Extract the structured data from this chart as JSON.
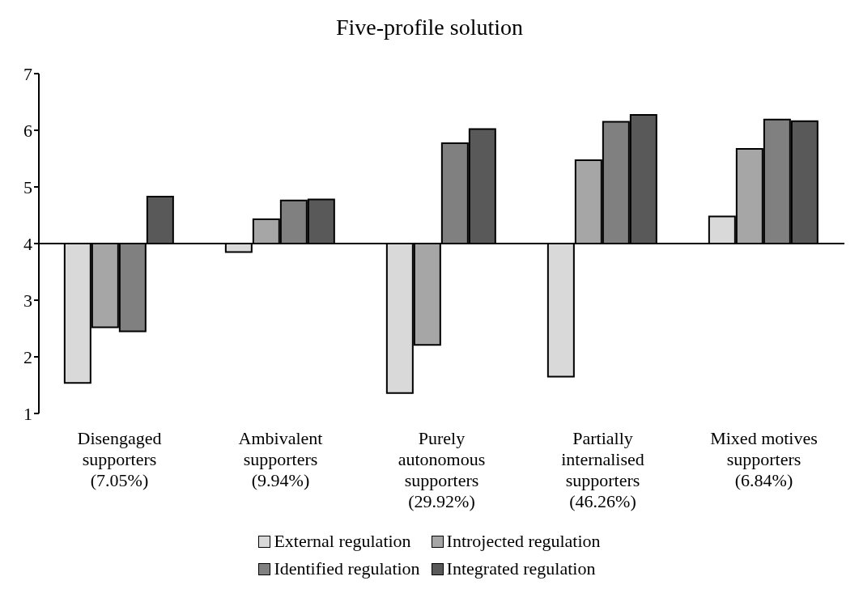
{
  "chart_data": {
    "type": "bar",
    "title": "Five-profile solution",
    "categories": [
      "Disengaged supporters (7.05%)",
      "Ambivalent supporters (9.94%)",
      "Purely autonomous supporters (29.92%)",
      "Partially internalised supporters (46.26%)",
      "Mixed motives supporters (6.84%)"
    ],
    "series": [
      {
        "name": "External regulation",
        "color": "#d9d9d9",
        "base": [
          4,
          4,
          4,
          4,
          4
        ],
        "values": [
          -2.46,
          -0.15,
          -2.64,
          -2.35,
          0.48
        ]
      },
      {
        "name": "Introjected regulation",
        "color": "#a6a6a6",
        "base": [
          4,
          4,
          4,
          4,
          4
        ],
        "values": [
          -1.48,
          0.43,
          -1.79,
          1.47,
          1.67
        ]
      },
      {
        "name": "Identified regulation",
        "color": "#808080",
        "base": [
          4,
          4,
          4,
          4,
          4
        ],
        "values": [
          -1.55,
          0.76,
          1.77,
          2.15,
          2.19
        ]
      },
      {
        "name": "Integrated regulation",
        "color": "#595959",
        "base": [
          4,
          4,
          4,
          4,
          4
        ],
        "values": [
          0.83,
          0.78,
          2.02,
          2.27,
          2.16
        ]
      }
    ],
    "ref_lines": [
      {
        "axis": "y",
        "value": 4,
        "color": "#000000"
      }
    ],
    "ylim": [
      1,
      7
    ],
    "yticks": [
      1,
      2,
      3,
      4,
      5,
      6,
      7
    ],
    "legend": "bottom"
  }
}
